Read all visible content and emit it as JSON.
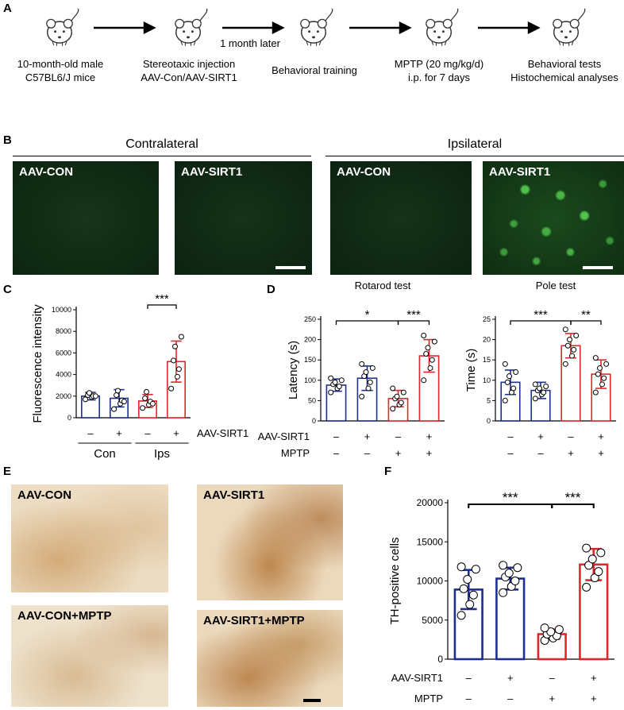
{
  "panel_letters": {
    "a": "A",
    "b": "B",
    "c": "C",
    "d": "D",
    "e": "E",
    "f": "F"
  },
  "timeline": {
    "steps": [
      {
        "label": "10-month-old male\nC57BL6/J mice"
      },
      {
        "label": "Stereotaxic injection\nAAV-Con/AAV-SIRT1"
      },
      {
        "label": "Behavioral training"
      },
      {
        "label": "MPTP (20 mg/kg/d)\ni.p. for 7 days"
      },
      {
        "label": "Behavioral tests\nHistochemical analyses"
      }
    ],
    "arrow_label": "1 month later"
  },
  "panel_b": {
    "contralateral": "Contralateral",
    "ipsilateral": "Ipsilateral",
    "images": [
      "AAV-CON",
      "AAV-SIRT1",
      "AAV-CON",
      "AAV-SIRT1"
    ]
  },
  "panel_e": {
    "images": [
      "AAV-CON",
      "AAV-SIRT1",
      "AAV-CON+MPTP",
      "AAV-SIRT1+MPTP"
    ]
  },
  "colors": {
    "blue": "#1f2f8f",
    "red": "#e0262b",
    "green_dark": "#0d2a10",
    "brown_bg": "#efe2cd"
  },
  "chart_data": [
    {
      "id": "C",
      "type": "bar",
      "ylabel": "Fluorescence intensity",
      "ylim": [
        0,
        10000
      ],
      "yticks": [
        0,
        2000,
        4000,
        6000,
        8000,
        10000
      ],
      "categories": [
        "Con –",
        "Con +",
        "Ips –",
        "Ips +"
      ],
      "values": [
        2000,
        1800,
        1550,
        5200
      ],
      "errors": [
        350,
        800,
        600,
        1900
      ],
      "colors": [
        "blue",
        "blue",
        "red",
        "red"
      ],
      "points": [
        [
          1700,
          1900,
          2000,
          2100,
          2300,
          2000
        ],
        [
          800,
          1300,
          1600,
          2100,
          2500,
          1500
        ],
        [
          900,
          1200,
          1500,
          1800,
          2400,
          1300
        ],
        [
          2700,
          3800,
          4500,
          5300,
          6600,
          7500
        ]
      ],
      "row_labels": [
        {
          "label": "AAV-SIRT1",
          "signs": [
            "–",
            "+",
            "–",
            "+"
          ]
        }
      ],
      "groups": [
        {
          "label": "Con",
          "span": [
            0,
            1
          ]
        },
        {
          "label": "Ips",
          "span": [
            2,
            3
          ]
        }
      ],
      "significance": [
        {
          "from": 2,
          "to": 3,
          "label": "***"
        }
      ]
    },
    {
      "id": "D1",
      "type": "bar",
      "title": "Rotarod test",
      "ylabel": "Latency (s)",
      "ylim": [
        0,
        250
      ],
      "yticks": [
        0,
        50,
        100,
        150,
        200,
        250
      ],
      "categories": [
        "–/–",
        "+/–",
        "–/+",
        "+/+"
      ],
      "values": [
        88,
        105,
        55,
        160
      ],
      "errors": [
        15,
        30,
        20,
        40
      ],
      "colors": [
        "blue",
        "blue",
        "red",
        "red"
      ],
      "points": [
        [
          70,
          80,
          85,
          90,
          95,
          100,
          105
        ],
        [
          60,
          80,
          95,
          110,
          120,
          130,
          140
        ],
        [
          30,
          40,
          45,
          55,
          60,
          70,
          80
        ],
        [
          100,
          130,
          150,
          165,
          180,
          195,
          210
        ]
      ],
      "row_labels": [
        {
          "label": "AAV-SIRT1",
          "signs": [
            "–",
            "+",
            "–",
            "+"
          ]
        },
        {
          "label": "MPTP",
          "signs": [
            "–",
            "–",
            "+",
            "+"
          ]
        }
      ],
      "significance": [
        {
          "from": 0,
          "to": 2,
          "label": "*"
        },
        {
          "from": 2,
          "to": 3,
          "label": "***"
        }
      ]
    },
    {
      "id": "D2",
      "type": "bar",
      "title": "Pole test",
      "ylabel": "Time (s)",
      "ylim": [
        0,
        25
      ],
      "yticks": [
        0,
        5,
        10,
        15,
        20,
        25
      ],
      "categories": [
        "–/–",
        "+/–",
        "–/+",
        "+/+"
      ],
      "values": [
        9.5,
        7.5,
        18.5,
        11.5
      ],
      "errors": [
        3,
        2,
        3,
        3.5
      ],
      "colors": [
        "blue",
        "blue",
        "red",
        "red"
      ],
      "points": [
        [
          5,
          7,
          8,
          9.5,
          11,
          12,
          14
        ],
        [
          5.5,
          6.5,
          7,
          7.5,
          8,
          8.5,
          9
        ],
        [
          14,
          16,
          17.5,
          18.5,
          20,
          21,
          22.5
        ],
        [
          7,
          9,
          10.5,
          11.5,
          13,
          14,
          15.5
        ]
      ],
      "row_labels": [
        {
          "label": "",
          "signs": [
            "–",
            "+",
            "–",
            "+"
          ]
        },
        {
          "label": "",
          "signs": [
            "–",
            "–",
            "+",
            "+"
          ]
        }
      ],
      "significance": [
        {
          "from": 0,
          "to": 2,
          "label": "***"
        },
        {
          "from": 2,
          "to": 3,
          "label": "**"
        }
      ]
    },
    {
      "id": "F",
      "type": "bar",
      "ylabel": "TH-positive cells",
      "ylim": [
        0,
        20000
      ],
      "yticks": [
        0,
        5000,
        10000,
        15000,
        20000
      ],
      "categories": [
        "–/–",
        "+/–",
        "–/+",
        "+/+"
      ],
      "values": [
        8900,
        10300,
        3200,
        12100
      ],
      "errors": [
        2500,
        1400,
        600,
        2000
      ],
      "colors": [
        "blue",
        "blue",
        "red",
        "red"
      ],
      "points": [
        [
          5600,
          7000,
          8200,
          9000,
          10200,
          11500,
          11800
        ],
        [
          8500,
          9300,
          10000,
          10500,
          11000,
          11700,
          12000
        ],
        [
          2400,
          2700,
          3000,
          3200,
          3500,
          3800,
          4000
        ],
        [
          9200,
          10400,
          11200,
          12000,
          12800,
          13600,
          14200
        ]
      ],
      "row_labels": [
        {
          "label": "AAV-SIRT1",
          "signs": [
            "–",
            "+",
            "–",
            "+"
          ]
        },
        {
          "label": "MPTP",
          "signs": [
            "–",
            "–",
            "+",
            "+"
          ]
        }
      ],
      "significance": [
        {
          "from": 0,
          "to": 2,
          "label": "***"
        },
        {
          "from": 2,
          "to": 3,
          "label": "***"
        }
      ]
    }
  ]
}
